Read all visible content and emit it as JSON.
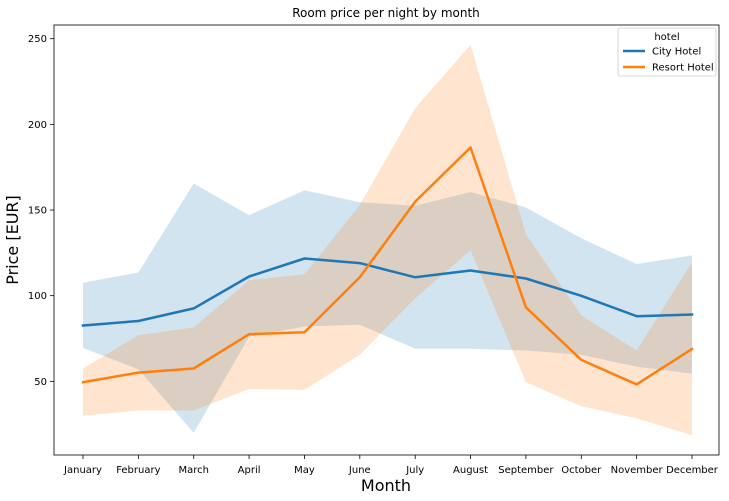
{
  "chart_data": {
    "type": "line",
    "title": "Room price per night by month",
    "xlabel": "Month",
    "ylabel": "Price [EUR]",
    "categories": [
      "January",
      "February",
      "March",
      "April",
      "May",
      "June",
      "July",
      "August",
      "September",
      "October",
      "November",
      "December"
    ],
    "ylim": [
      7,
      258
    ],
    "yticks": [
      50,
      100,
      150,
      200,
      250
    ],
    "grid": false,
    "legend": {
      "title": "hotel",
      "placement": "top-right"
    },
    "series": [
      {
        "name": "City Hotel",
        "color": "#1f77b4",
        "values": [
          82.6,
          85.2,
          92.6,
          111.2,
          121.7,
          119.0,
          110.7,
          114.7,
          110.0,
          99.9,
          88.0,
          89.0
        ],
        "band_upper": [
          107.5,
          113.5,
          165.5,
          147.0,
          161.5,
          154.5,
          152.5,
          160.5,
          151.5,
          133.5,
          118.5,
          123.5
        ],
        "band_lower": [
          69.5,
          57.0,
          20.0,
          76.0,
          82.0,
          83.0,
          69.0,
          69.0,
          68.0,
          65.5,
          58.5,
          54.5
        ]
      },
      {
        "name": "Resort Hotel",
        "color": "#ff7f0e",
        "values": [
          49.5,
          55.1,
          57.5,
          77.5,
          78.6,
          110.7,
          154.9,
          186.5,
          93.2,
          62.5,
          48.2,
          68.9
        ],
        "band_upper": [
          57.5,
          77.0,
          81.5,
          109.0,
          112.5,
          153.0,
          209.5,
          246.5,
          136.0,
          88.5,
          68.0,
          119.5
        ],
        "band_lower": [
          30.0,
          33.0,
          33.0,
          45.5,
          45.0,
          65.5,
          98.5,
          126.5,
          49.5,
          35.5,
          28.5,
          18.5
        ]
      }
    ]
  }
}
